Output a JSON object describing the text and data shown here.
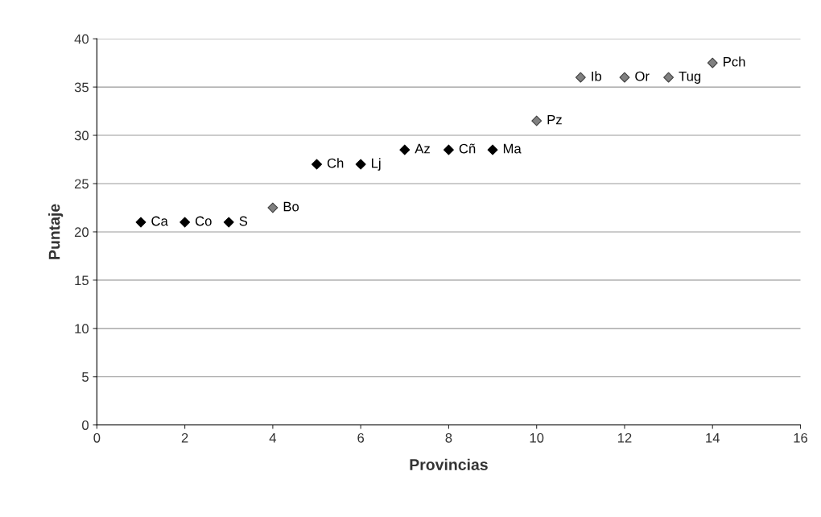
{
  "chart_data": {
    "type": "scatter",
    "xlabel": "Provincias",
    "ylabel": "Puntaje",
    "xlim": [
      0,
      16
    ],
    "xticks": [
      0,
      2,
      4,
      6,
      8,
      10,
      12,
      14,
      16
    ],
    "ylim": [
      0,
      40
    ],
    "yticks": [
      0,
      5,
      10,
      15,
      20,
      25,
      30,
      35,
      40
    ],
    "grid": "y",
    "marker": "diamond",
    "series": [
      {
        "color": "#000000",
        "x": [
          1,
          2,
          3,
          5,
          6,
          7,
          8,
          9
        ],
        "values": [
          21,
          21,
          21,
          27,
          27,
          28.5,
          28.5,
          28.5
        ]
      },
      {
        "color": "#808080",
        "x": [
          4,
          10,
          11,
          12,
          13,
          14
        ],
        "values": [
          22.5,
          31.5,
          36,
          36,
          36,
          37.5
        ]
      }
    ],
    "annotations": [
      {
        "text": "Ca",
        "x": 1,
        "y": 21
      },
      {
        "text": "Co",
        "x": 2,
        "y": 21
      },
      {
        "text": "S",
        "x": 3,
        "y": 21
      },
      {
        "text": "Bo",
        "x": 4,
        "y": 22.5
      },
      {
        "text": "Ch",
        "x": 5,
        "y": 27
      },
      {
        "text": "Lj",
        "x": 6,
        "y": 27
      },
      {
        "text": "Az",
        "x": 7,
        "y": 28.5
      },
      {
        "text": "Cñ",
        "x": 8,
        "y": 28.5
      },
      {
        "text": "Ma",
        "x": 9,
        "y": 28.5
      },
      {
        "text": "Pz",
        "x": 10,
        "y": 31.5
      },
      {
        "text": "Ib",
        "x": 11,
        "y": 36
      },
      {
        "text": "Or",
        "x": 12,
        "y": 36
      },
      {
        "text": "Tug",
        "x": 13,
        "y": 36
      },
      {
        "text": "Pch",
        "x": 14,
        "y": 37.5
      }
    ]
  }
}
